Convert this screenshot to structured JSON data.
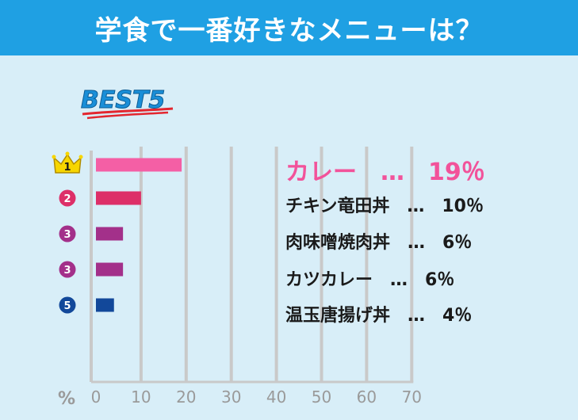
{
  "header": {
    "title": "学食で一番好きなメニューは？"
  },
  "badge": {
    "text": "BEST5"
  },
  "colors": {
    "header_bg": "#1fa0e3",
    "background": "#d8eef8",
    "rank1": "#f45fa5",
    "rank2": "#dd2f68",
    "rank3": "#a3308a",
    "rank5": "#12489a",
    "crown": "#f7d600"
  },
  "chart_data": {
    "type": "bar",
    "orientation": "horizontal",
    "categories": [
      "カレー",
      "チキン竜田丼",
      "肉味噌焼肉丼",
      "カツカレー",
      "温玉唐揚げ丼"
    ],
    "values": [
      19,
      10,
      6,
      6,
      4
    ],
    "ranks": [
      "1",
      "2",
      "3",
      "3",
      "5"
    ],
    "labels": [
      "カレー　…　19％",
      "チキン竜田丼　…　10％",
      "肉味噌焼肉丼　…　6％",
      "カツカレー　…　6％",
      "温玉唐揚げ丼　…　4％"
    ],
    "xlim": [
      0,
      70
    ],
    "xticks": [
      "0",
      "10",
      "20",
      "30",
      "40",
      "50",
      "60",
      "70"
    ],
    "xunit": "%",
    "grid": true
  }
}
